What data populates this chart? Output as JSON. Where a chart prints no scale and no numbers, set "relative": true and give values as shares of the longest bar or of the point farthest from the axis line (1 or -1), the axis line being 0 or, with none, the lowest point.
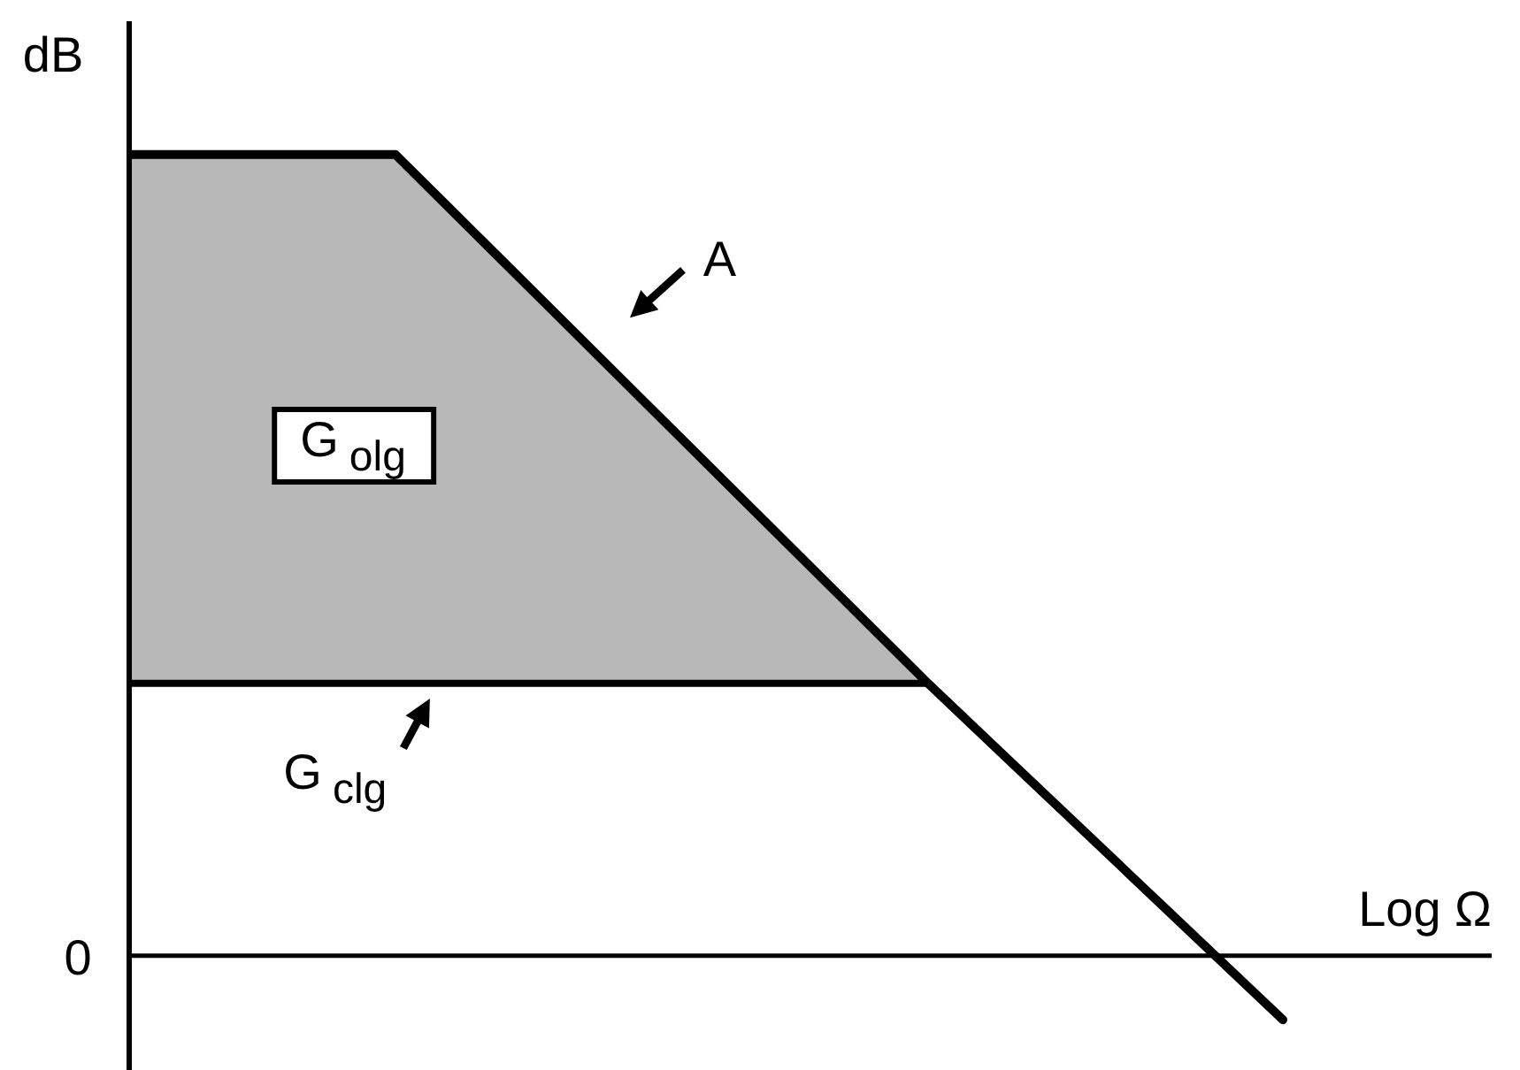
{
  "chart_data": {
    "type": "line",
    "relative": true,
    "ylabel": "dB",
    "xlabel": "Log Ω",
    "categories": [
      null,
      null,
      null,
      null,
      null,
      null,
      null,
      null,
      null,
      null,
      null,
      null,
      null,
      null
    ],
    "series": [
      {
        "name": "A",
        "color": "#000000",
        "values": [
          1,
          1,
          1,
          1,
          0.89,
          0.78,
          0.67,
          0.56,
          0.45,
          0.34,
          0.235,
          0.13,
          0.025,
          -0.08
        ],
        "lower": [
          0.34,
          0.34,
          0.34,
          0.34,
          0.34,
          0.34,
          0.34,
          0.34,
          0.34,
          0.34,
          null,
          null,
          null,
          null
        ],
        "upper": [
          1,
          1,
          1,
          1,
          0.89,
          0.78,
          0.67,
          0.56,
          0.45,
          0.34,
          null,
          null,
          null,
          null
        ]
      },
      {
        "name": "G$_{clg}$",
        "color": "#000000",
        "values": [
          0.34,
          0.34,
          0.34,
          0.34,
          0.34,
          0.34,
          0.34,
          0.34,
          0.34,
          0.34,
          null,
          null,
          null,
          null
        ]
      }
    ],
    "ref_lines": [
      {
        "axis": "y",
        "value": 0,
        "label": "0",
        "color": "#000000"
      }
    ],
    "annotations": [
      "G$_{olg}$"
    ],
    "marker": "none"
  }
}
